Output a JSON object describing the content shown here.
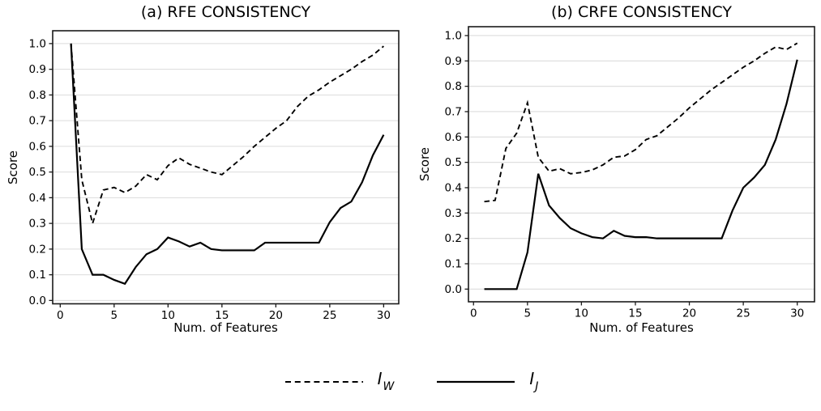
{
  "figure": {
    "background": "#ffffff",
    "line_color": "#000000",
    "grid_color": "#dcdcdc",
    "spine_color": "#1a1a1a",
    "tick_label_color": "#000000"
  },
  "legend": {
    "items": [
      {
        "id": "iw",
        "style": "dashed",
        "label_base": "I",
        "label_sub": "W"
      },
      {
        "id": "ij",
        "style": "solid",
        "label_base": "I",
        "label_sub": "J"
      }
    ]
  },
  "chart_data": [
    {
      "id": "rfe",
      "type": "line",
      "title": "(a) RFE CONSISTENCY",
      "xlabel": "Num. of Features",
      "ylabel": "Score",
      "grid": "horizontal",
      "xlim": [
        -0.7,
        31.4
      ],
      "ylim": [
        -0.013,
        1.05
      ],
      "xticks": [
        0,
        5,
        10,
        15,
        20,
        25,
        30
      ],
      "yticks": [
        "0.0",
        "0.1",
        "0.2",
        "0.3",
        "0.4",
        "0.5",
        "0.6",
        "0.7",
        "0.8",
        "0.9",
        "1.0"
      ],
      "x": [
        1,
        2,
        3,
        4,
        5,
        6,
        7,
        8,
        9,
        10,
        11,
        12,
        13,
        14,
        15,
        16,
        17,
        18,
        19,
        20,
        21,
        22,
        23,
        24,
        25,
        26,
        27,
        28,
        29,
        30
      ],
      "series": [
        {
          "name": "I_W",
          "style": "dashed",
          "values": [
            1.0,
            0.47,
            0.3,
            0.43,
            0.44,
            0.42,
            0.445,
            0.49,
            0.47,
            0.525,
            0.555,
            0.53,
            0.515,
            0.5,
            0.49,
            0.525,
            0.56,
            0.6,
            0.635,
            0.67,
            0.7,
            0.755,
            0.795,
            0.82,
            0.85,
            0.875,
            0.9,
            0.93,
            0.955,
            0.99
          ]
        },
        {
          "name": "I_J",
          "style": "solid",
          "values": [
            1.0,
            0.2,
            0.1,
            0.1,
            0.08,
            0.065,
            0.13,
            0.18,
            0.2,
            0.245,
            0.23,
            0.21,
            0.225,
            0.2,
            0.195,
            0.195,
            0.195,
            0.195,
            0.225,
            0.225,
            0.225,
            0.225,
            0.225,
            0.225,
            0.305,
            0.36,
            0.385,
            0.46,
            0.565,
            0.645
          ]
        }
      ]
    },
    {
      "id": "crfe",
      "type": "line",
      "title": "(b) CRFE CONSISTENCY",
      "xlabel": "Num. of Features",
      "ylabel": "Score",
      "grid": "horizontal",
      "xlim": [
        -0.47,
        31.6
      ],
      "ylim": [
        -0.05,
        1.035
      ],
      "xticks": [
        0,
        5,
        10,
        15,
        20,
        25,
        30
      ],
      "yticks": [
        "0.0",
        "0.1",
        "0.2",
        "0.3",
        "0.4",
        "0.5",
        "0.6",
        "0.7",
        "0.8",
        "0.9",
        "1.0"
      ],
      "x": [
        1,
        2,
        3,
        4,
        5,
        6,
        7,
        8,
        9,
        10,
        11,
        12,
        13,
        14,
        15,
        16,
        17,
        18,
        19,
        20,
        21,
        22,
        23,
        24,
        25,
        26,
        27,
        28,
        29,
        30
      ],
      "series": [
        {
          "name": "I_W",
          "style": "dashed",
          "values": [
            0.345,
            0.35,
            0.555,
            0.615,
            0.735,
            0.52,
            0.465,
            0.475,
            0.455,
            0.46,
            0.47,
            0.49,
            0.52,
            0.525,
            0.55,
            0.59,
            0.605,
            0.64,
            0.675,
            0.715,
            0.75,
            0.785,
            0.815,
            0.845,
            0.875,
            0.9,
            0.93,
            0.955,
            0.945,
            0.97
          ]
        },
        {
          "name": "I_J",
          "style": "solid",
          "values": [
            0.0,
            0.0,
            0.0,
            0.0,
            0.145,
            0.455,
            0.33,
            0.28,
            0.24,
            0.22,
            0.205,
            0.2,
            0.23,
            0.21,
            0.205,
            0.205,
            0.2,
            0.2,
            0.2,
            0.2,
            0.2,
            0.2,
            0.2,
            0.31,
            0.4,
            0.44,
            0.49,
            0.59,
            0.73,
            0.905
          ]
        }
      ]
    }
  ]
}
